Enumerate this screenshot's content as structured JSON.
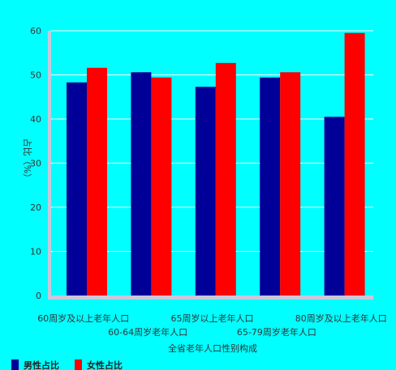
{
  "chart_data": {
    "type": "bar",
    "categories": [
      "60周岁及以上老年人口",
      "60-64周岁老年人口",
      "65周岁以上老年人口",
      "65-79周岁老年人口",
      "80周岁及以上老年人口"
    ],
    "series": [
      {
        "name": "男性占比",
        "values": [
          48.3,
          50.6,
          47.3,
          49.4,
          40.5
        ],
        "color": "#000099"
      },
      {
        "name": "女性占比",
        "values": [
          51.6,
          49.4,
          52.7,
          50.6,
          59.5
        ],
        "color": "#ff0000"
      }
    ],
    "title": "",
    "xlabel": "全省老年人口性别构成",
    "ylabel": "占比（%）",
    "ylim": [
      0,
      60
    ],
    "yticks": [
      "0",
      "10",
      "20",
      "30",
      "40",
      "50",
      "60"
    ],
    "grid": true,
    "legend_position": "bottom-left",
    "background_color": "#00ffff",
    "gridline_color": "#ffffff",
    "axis_color": "#c8c8dc"
  }
}
